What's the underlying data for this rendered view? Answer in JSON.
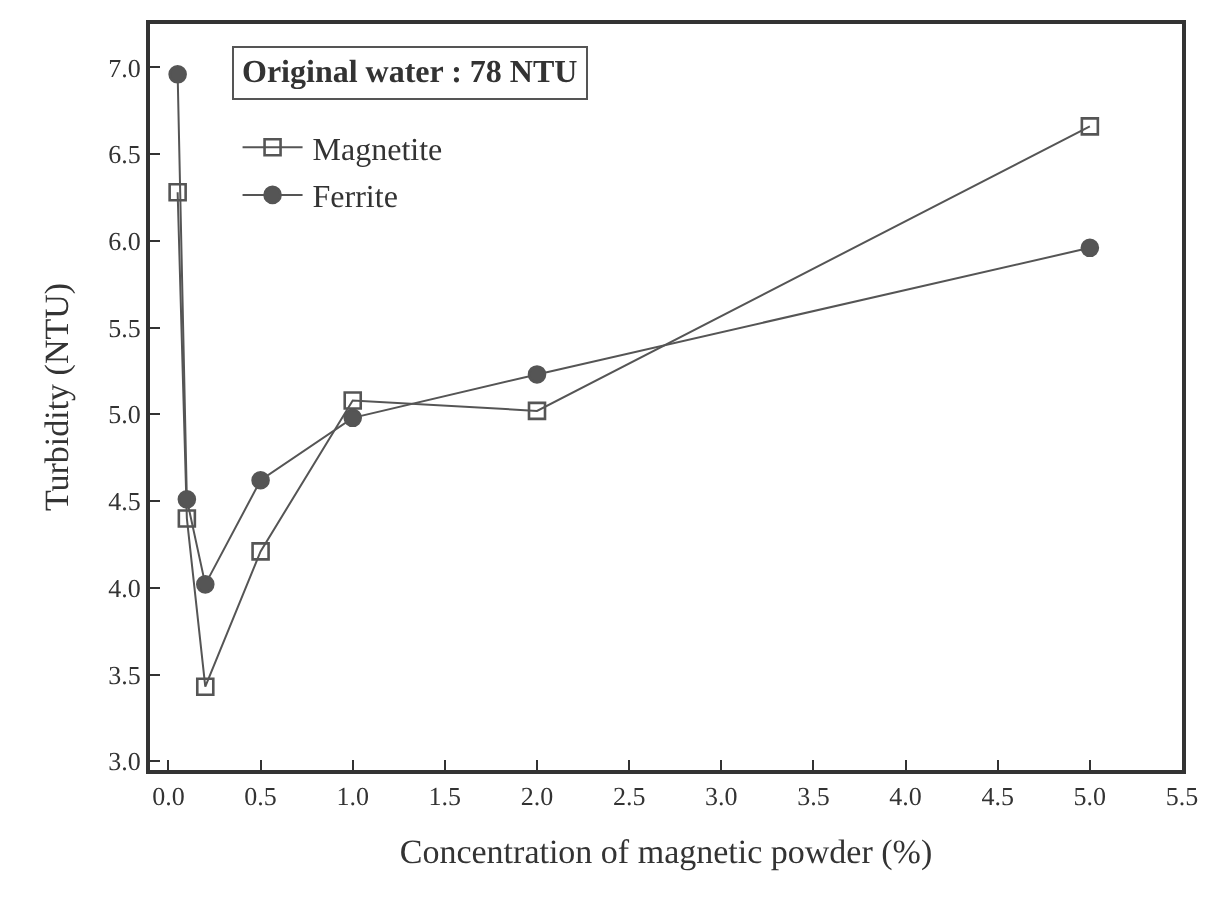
{
  "chart_data": {
    "type": "line",
    "xlabel": "Concentration of magnetic powder (%)",
    "ylabel": "Turbidity (NTU)",
    "x": [
      0.05,
      0.1,
      0.2,
      0.5,
      1,
      2,
      5
    ],
    "series": [
      {
        "name": "Magnetite",
        "color": "#555555",
        "marker": "square",
        "values": [
          6.28,
          4.4,
          3.43,
          4.21,
          5.08,
          5.02,
          6.66
        ]
      },
      {
        "name": "Ferrite",
        "color": "#555555",
        "marker": "circle",
        "values": [
          6.96,
          4.51,
          4.02,
          4.62,
          4.98,
          5.23,
          5.96
        ]
      }
    ],
    "xlim": [
      -0.1,
      5.5
    ],
    "xticks": [
      {
        "value": 0,
        "label": "0.0"
      },
      0.5,
      {
        "value": 1,
        "label": "1.0"
      },
      1.5,
      {
        "value": 2,
        "label": "2.0"
      },
      2.5,
      {
        "value": 3,
        "label": "3.0"
      },
      3.5,
      {
        "value": 4,
        "label": "4.0"
      },
      4.5,
      {
        "value": 5,
        "label": "5.0"
      },
      5.5
    ],
    "ylim": [
      2.95,
      7.25
    ],
    "yticks": [
      {
        "value": 3,
        "label": "3.0"
      },
      3.5,
      {
        "value": 4,
        "label": "4.0"
      },
      4.5,
      {
        "value": 5,
        "label": "5.0"
      },
      5.5,
      {
        "value": 6,
        "label": "6.0"
      },
      6.5,
      {
        "value": 7,
        "label": "7.0"
      }
    ],
    "annotations": [
      "Original water : 78 NTU"
    ],
    "legend": "top left",
    "line_style": "solid"
  }
}
